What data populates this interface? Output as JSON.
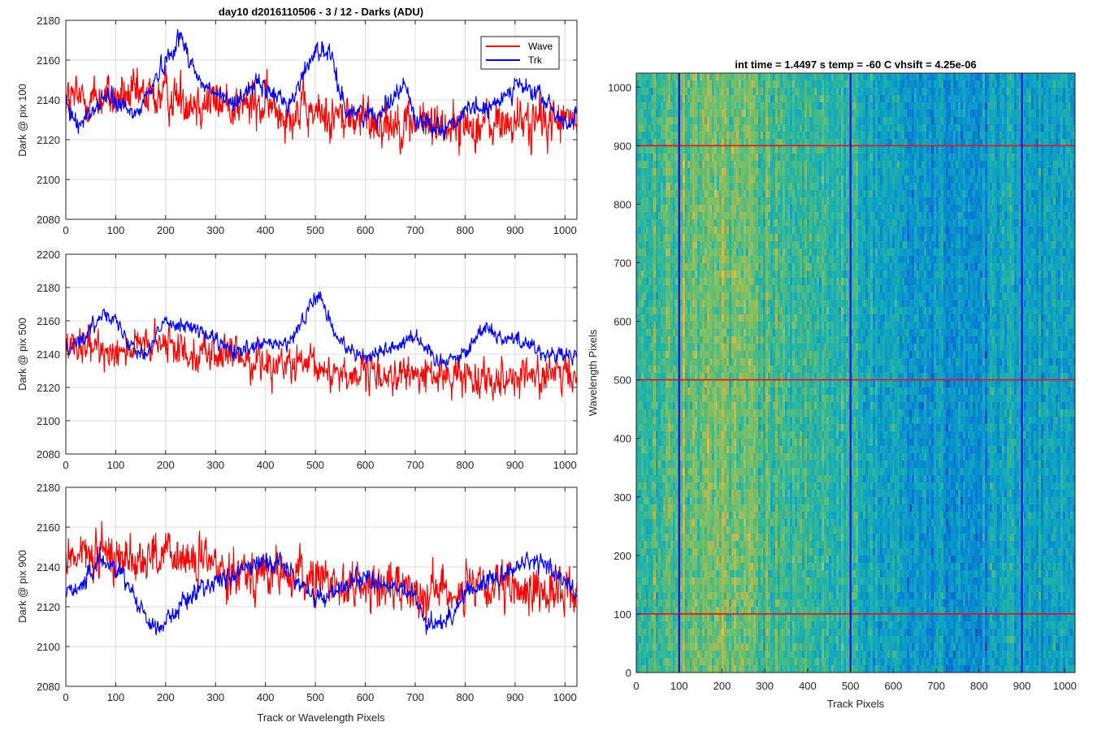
{
  "chart_data": [
    {
      "type": "line",
      "title": "day10 d2016110506 - 3 / 12 - Darks (ADU)",
      "ylabel": "Dark @ pix 100",
      "xlabel": "",
      "xlim": [
        0,
        1024
      ],
      "ylim": [
        2080,
        2180
      ],
      "xticks": [
        0,
        100,
        200,
        300,
        400,
        500,
        600,
        700,
        800,
        900,
        1000
      ],
      "yticks": [
        2080,
        2100,
        2120,
        2140,
        2160,
        2180
      ],
      "grid": true,
      "legend": "top-right",
      "series": [
        {
          "name": "Wave",
          "color": "#ff0000",
          "mean": 2136,
          "noise": 10,
          "trend": [
            [
              0,
              2140
            ],
            [
              200,
              2142
            ],
            [
              400,
              2136
            ],
            [
              600,
              2130
            ],
            [
              800,
              2127
            ],
            [
              1024,
              2130
            ]
          ]
        },
        {
          "name": "Trk",
          "color": "#0000ff",
          "mean": 2140,
          "noise": 4,
          "trend": [
            [
              0,
              2136
            ],
            [
              30,
              2128
            ],
            [
              80,
              2142
            ],
            [
              140,
              2132
            ],
            [
              200,
              2160
            ],
            [
              230,
              2172
            ],
            [
              270,
              2148
            ],
            [
              330,
              2138
            ],
            [
              380,
              2148
            ],
            [
              450,
              2138
            ],
            [
              480,
              2155
            ],
            [
              500,
              2166
            ],
            [
              530,
              2162
            ],
            [
              560,
              2135
            ],
            [
              620,
              2132
            ],
            [
              660,
              2143
            ],
            [
              680,
              2148
            ],
            [
              700,
              2130
            ],
            [
              760,
              2126
            ],
            [
              820,
              2136
            ],
            [
              850,
              2135
            ],
            [
              900,
              2148
            ],
            [
              950,
              2142
            ],
            [
              1000,
              2128
            ],
            [
              1024,
              2132
            ]
          ]
        }
      ]
    },
    {
      "type": "line",
      "ylabel": "Dark @ pix 500",
      "xlabel": "",
      "xlim": [
        0,
        1024
      ],
      "ylim": [
        2080,
        2200
      ],
      "xticks": [
        0,
        100,
        200,
        300,
        400,
        500,
        600,
        700,
        800,
        900,
        1000
      ],
      "yticks": [
        2080,
        2100,
        2120,
        2140,
        2160,
        2180,
        2200
      ],
      "grid": true,
      "series": [
        {
          "name": "Wave",
          "color": "#ff0000",
          "mean": 2135,
          "noise": 9,
          "trend": [
            [
              0,
              2142
            ],
            [
              200,
              2145
            ],
            [
              400,
              2135
            ],
            [
              600,
              2127
            ],
            [
              800,
              2127
            ],
            [
              1024,
              2127
            ]
          ]
        },
        {
          "name": "Trk",
          "color": "#0000ff",
          "mean": 2142,
          "noise": 4,
          "trend": [
            [
              0,
              2145
            ],
            [
              40,
              2150
            ],
            [
              80,
              2168
            ],
            [
              120,
              2150
            ],
            [
              160,
              2140
            ],
            [
              200,
              2160
            ],
            [
              240,
              2158
            ],
            [
              300,
              2148
            ],
            [
              340,
              2140
            ],
            [
              400,
              2146
            ],
            [
              450,
              2146
            ],
            [
              490,
              2170
            ],
            [
              510,
              2175
            ],
            [
              540,
              2150
            ],
            [
              600,
              2138
            ],
            [
              660,
              2145
            ],
            [
              700,
              2152
            ],
            [
              740,
              2136
            ],
            [
              800,
              2140
            ],
            [
              840,
              2158
            ],
            [
              870,
              2150
            ],
            [
              920,
              2148
            ],
            [
              960,
              2140
            ],
            [
              1024,
              2138
            ]
          ]
        }
      ]
    },
    {
      "type": "line",
      "ylabel": "Dark @ pix 900",
      "xlabel": "Track or Wavelength Pixels",
      "xlim": [
        0,
        1024
      ],
      "ylim": [
        2080,
        2180
      ],
      "xticks": [
        0,
        100,
        200,
        300,
        400,
        500,
        600,
        700,
        800,
        900,
        1000
      ],
      "yticks": [
        2080,
        2100,
        2120,
        2140,
        2160,
        2180
      ],
      "grid": true,
      "series": [
        {
          "name": "Wave",
          "color": "#ff0000",
          "mean": 2138,
          "noise": 10,
          "trend": [
            [
              0,
              2146
            ],
            [
              200,
              2145
            ],
            [
              400,
              2137
            ],
            [
              600,
              2130
            ],
            [
              800,
              2128
            ],
            [
              1024,
              2128
            ]
          ]
        },
        {
          "name": "Trk",
          "color": "#0000ff",
          "mean": 2130,
          "noise": 4,
          "trend": [
            [
              0,
              2128
            ],
            [
              40,
              2132
            ],
            [
              70,
              2144
            ],
            [
              110,
              2138
            ],
            [
              150,
              2120
            ],
            [
              180,
              2108
            ],
            [
              220,
              2118
            ],
            [
              270,
              2130
            ],
            [
              330,
              2135
            ],
            [
              390,
              2143
            ],
            [
              430,
              2142
            ],
            [
              470,
              2132
            ],
            [
              500,
              2123
            ],
            [
              560,
              2130
            ],
            [
              600,
              2135
            ],
            [
              700,
              2125
            ],
            [
              720,
              2112
            ],
            [
              760,
              2112
            ],
            [
              800,
              2127
            ],
            [
              860,
              2135
            ],
            [
              920,
              2142
            ],
            [
              960,
              2142
            ],
            [
              1024,
              2127
            ]
          ]
        }
      ]
    },
    {
      "type": "heatmap",
      "title": "int time = 1.4497 s    temp = -60 C    vhsift = 4.25e-06",
      "xlabel": "Track Pixels",
      "ylabel": "Wavelength Pixels",
      "xlim": [
        0,
        1024
      ],
      "ylim": [
        0,
        1024
      ],
      "xticks": [
        0,
        100,
        200,
        300,
        400,
        500,
        600,
        700,
        800,
        900,
        1000
      ],
      "yticks": [
        0,
        100,
        200,
        300,
        400,
        500,
        600,
        700,
        800,
        900,
        1000
      ],
      "colormap": "parula",
      "vertical_markers": {
        "color": "#0000ff",
        "values": [
          100,
          500,
          900
        ]
      },
      "horizontal_markers": {
        "color": "#ff0000",
        "values": [
          100,
          500,
          900
        ]
      },
      "column_profile": [
        [
          0,
          0.52
        ],
        [
          100,
          0.6
        ],
        [
          200,
          0.66
        ],
        [
          250,
          0.64
        ],
        [
          300,
          0.58
        ],
        [
          400,
          0.56
        ],
        [
          500,
          0.5
        ],
        [
          600,
          0.38
        ],
        [
          700,
          0.33
        ],
        [
          800,
          0.35
        ],
        [
          900,
          0.4
        ],
        [
          1024,
          0.42
        ]
      ]
    }
  ]
}
